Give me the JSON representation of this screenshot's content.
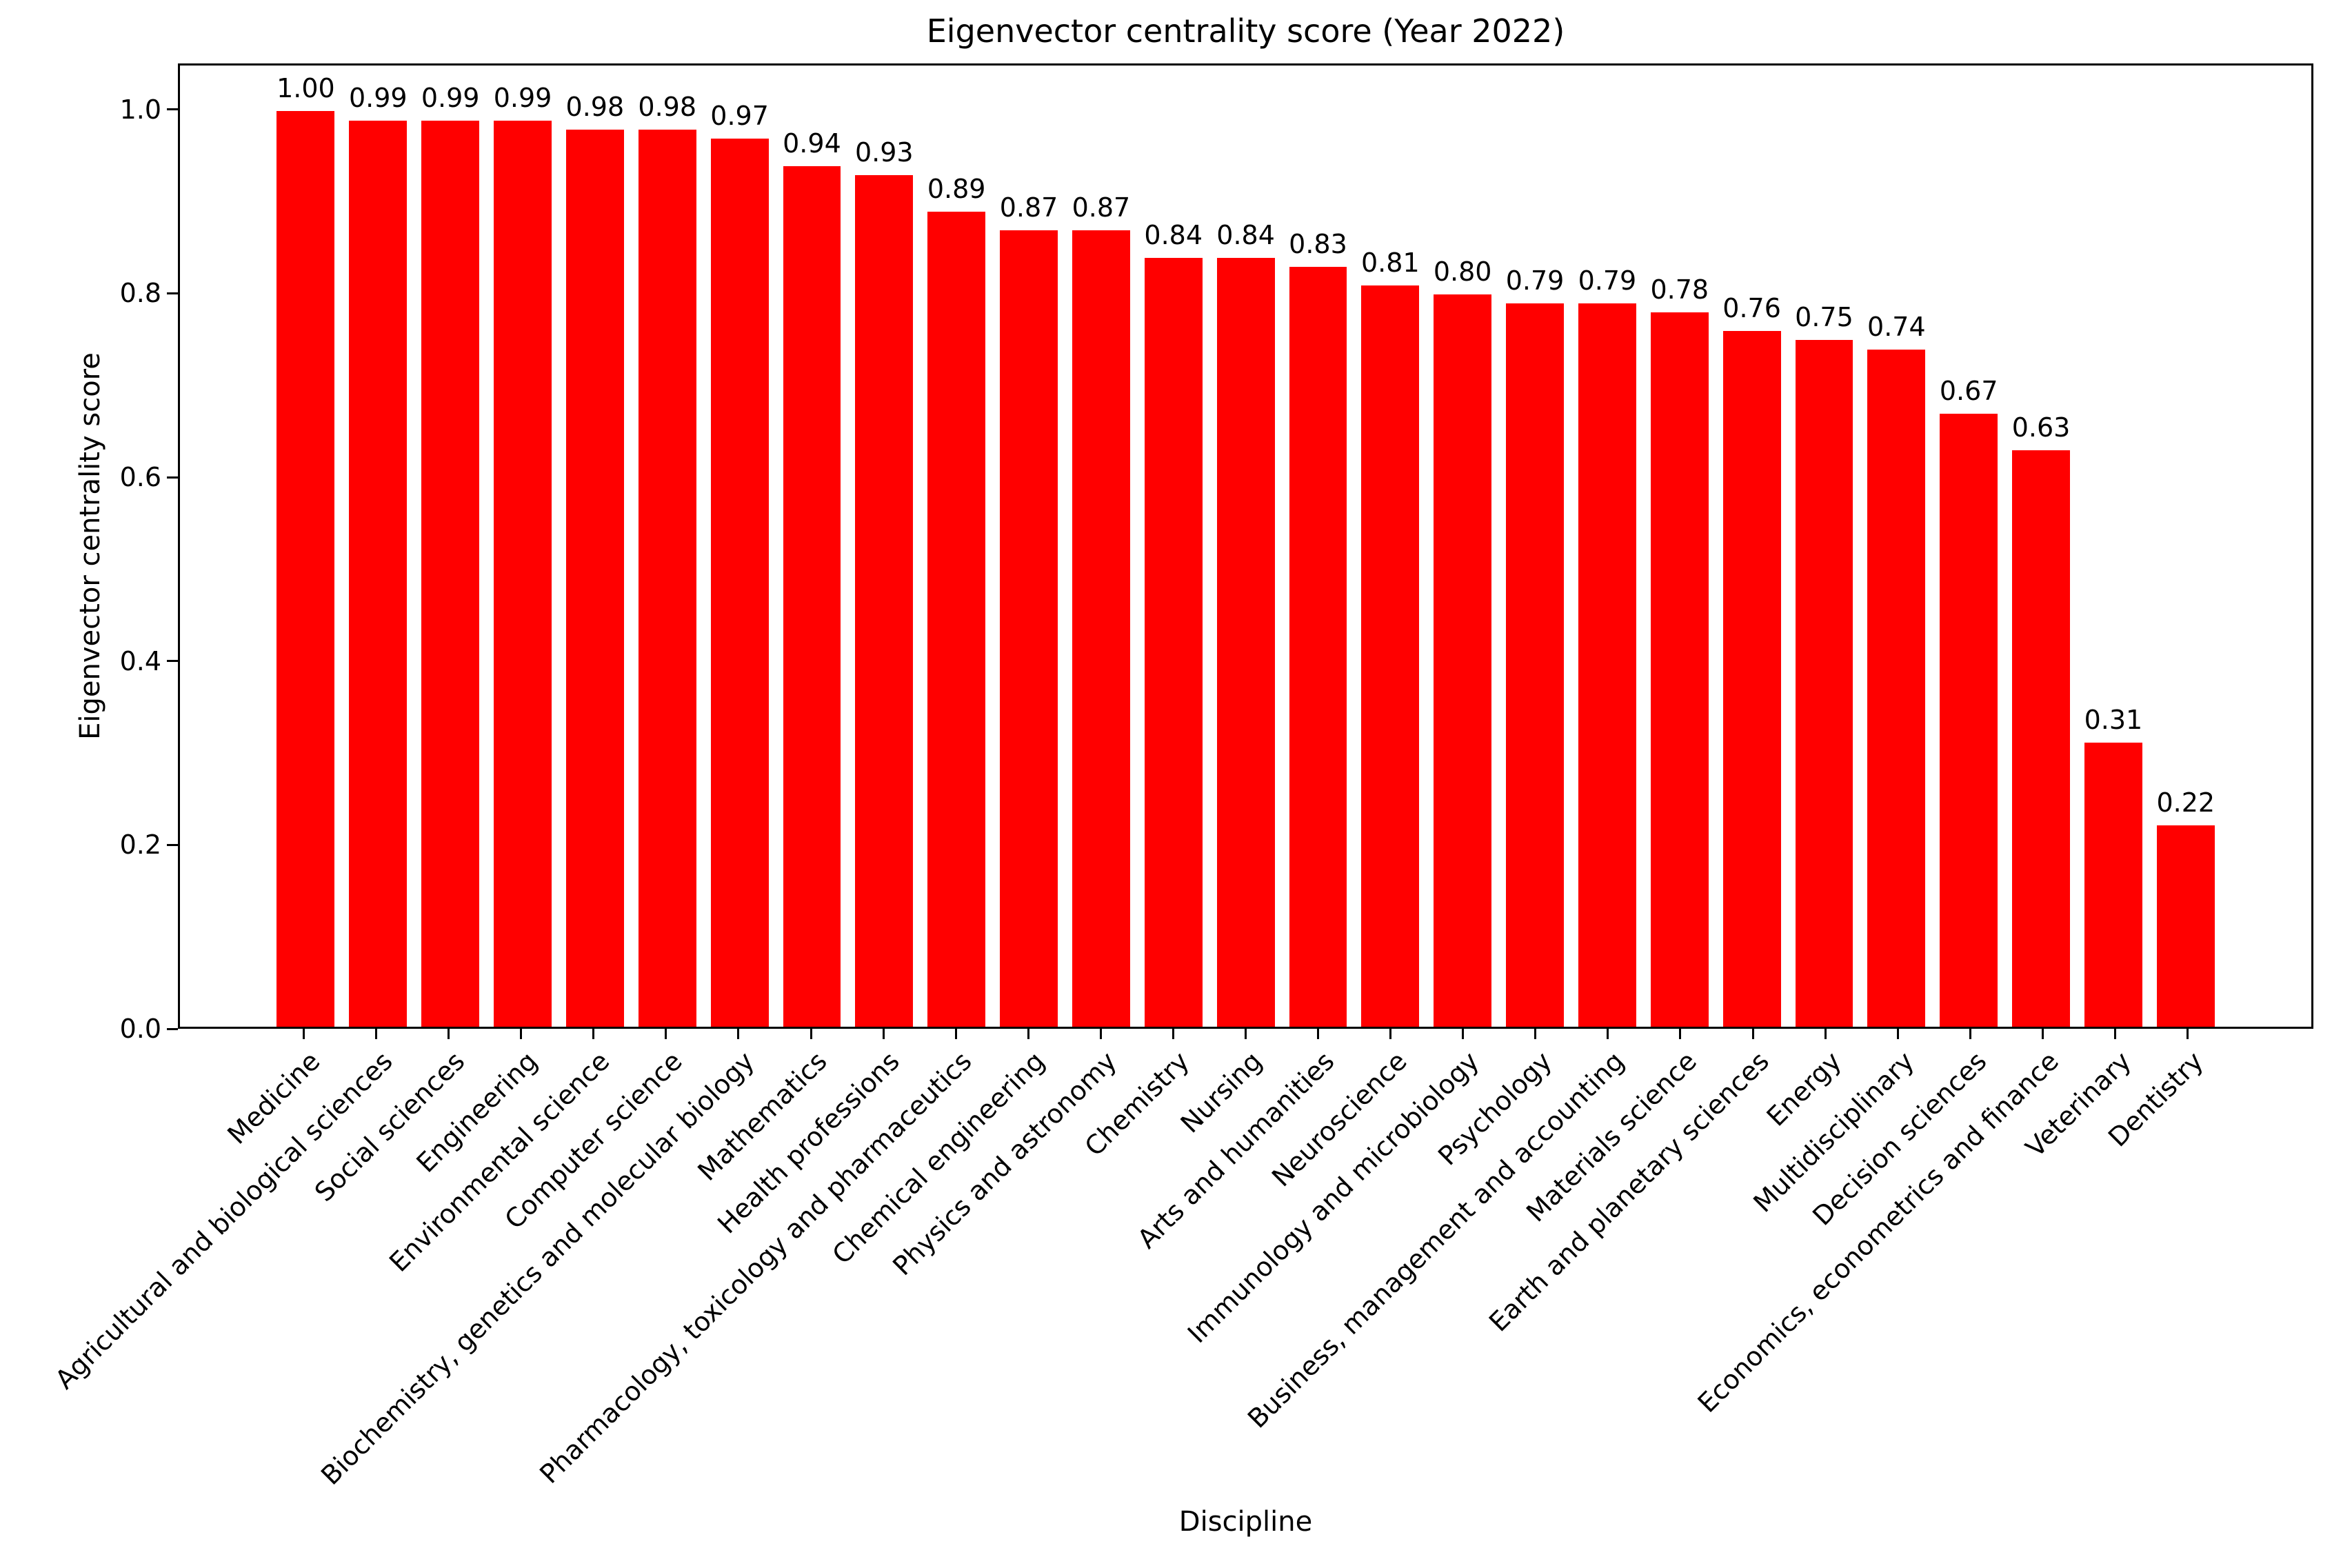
{
  "chart_data": {
    "type": "bar",
    "title": "Eigenvector centrality score (Year 2022)",
    "xlabel": "Discipline",
    "ylabel": "Eigenvector centrality score",
    "bar_color": "#ff0000",
    "text_color": "#000000",
    "background_color": "#ffffff",
    "grid": false,
    "legend_position": "none",
    "ylim": [
      0,
      1.05
    ],
    "yticks": [
      0.0,
      0.2,
      0.4,
      0.6,
      0.8,
      1.0
    ],
    "value_label_decimals": 2,
    "categories": [
      "Medicine",
      "Agricultural and biological sciences",
      "Social sciences",
      "Engineering",
      "Environmental science",
      "Computer science",
      "Biochemistry, genetics and molecular biology",
      "Mathematics",
      "Health professions",
      "Pharmacology, toxicology and pharmaceutics",
      "Chemical engineering",
      "Physics and astronomy",
      "Chemistry",
      "Nursing",
      "Arts and humanities",
      "Neuroscience",
      "Immunology and microbiology",
      "Psychology",
      "Business, management and accounting",
      "Materials science",
      "Earth and planetary sciences",
      "Energy",
      "Multidisciplinary",
      "Decision sciences",
      "Economics, econometrics and finance",
      "Veterinary",
      "Dentistry"
    ],
    "values": [
      1.0,
      0.99,
      0.99,
      0.99,
      0.98,
      0.98,
      0.97,
      0.94,
      0.93,
      0.89,
      0.87,
      0.87,
      0.84,
      0.84,
      0.83,
      0.81,
      0.8,
      0.79,
      0.79,
      0.78,
      0.76,
      0.75,
      0.74,
      0.67,
      0.63,
      0.31,
      0.22
    ]
  }
}
